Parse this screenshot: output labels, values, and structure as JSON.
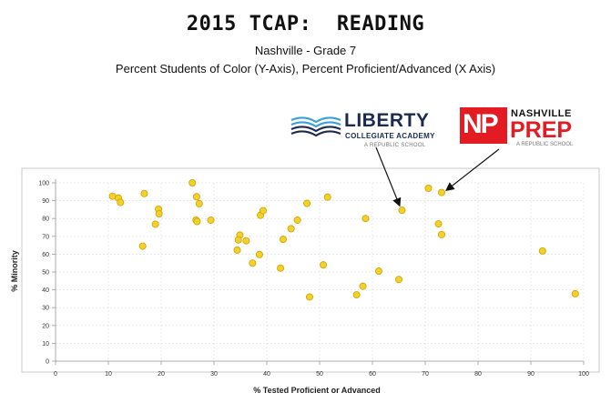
{
  "header": {
    "title": "2015 TCAP:  READING",
    "subtitle1": "Nashville - Grade 7",
    "subtitle2": "Percent Students of Color (Y-Axis), Percent Proficient/Advanced (X Axis)"
  },
  "logos": {
    "liberty": {
      "name": "LIBERTY",
      "subtitle": "COLLEGIATE ACADEMY",
      "tagline": "A REPUBLIC SCHOOL"
    },
    "nashville_prep": {
      "initials": "NP",
      "name_top": "NASHVILLE",
      "name_bottom": "PREP",
      "tagline": "A REPUBLIC SCHOOL"
    }
  },
  "colors": {
    "point_fill": "#f5d02b",
    "point_stroke": "#c9a200",
    "grid": "#dcdcdc",
    "axis": "#999999",
    "liberty_blue": "#1c2a52",
    "np_red": "#e31b23"
  },
  "chart_data": {
    "type": "scatter",
    "title": "2015 TCAP:  READING",
    "xlabel": "% Tested Proficient or Advanced",
    "ylabel": "% Minority",
    "xlim": [
      0,
      100
    ],
    "ylim": [
      0,
      100
    ],
    "xticks": [
      0,
      10,
      20,
      30,
      40,
      50,
      60,
      70,
      80,
      90,
      100
    ],
    "yticks": [
      0,
      10,
      20,
      30,
      40,
      50,
      60,
      70,
      80,
      90,
      100
    ],
    "grid": true,
    "points": [
      {
        "x": 10.8,
        "y": 92.5
      },
      {
        "x": 11.9,
        "y": 91.5
      },
      {
        "x": 12.3,
        "y": 89
      },
      {
        "x": 16.8,
        "y": 94
      },
      {
        "x": 16.5,
        "y": 64.5
      },
      {
        "x": 18.9,
        "y": 76.8
      },
      {
        "x": 19.5,
        "y": 85.2
      },
      {
        "x": 19.6,
        "y": 82.6
      },
      {
        "x": 25.9,
        "y": 100
      },
      {
        "x": 26.7,
        "y": 92.2
      },
      {
        "x": 27.2,
        "y": 88.3
      },
      {
        "x": 26.6,
        "y": 79.1
      },
      {
        "x": 26.8,
        "y": 78.3
      },
      {
        "x": 29.4,
        "y": 79.1
      },
      {
        "x": 34.9,
        "y": 70.7
      },
      {
        "x": 34.6,
        "y": 68
      },
      {
        "x": 36.1,
        "y": 67.5
      },
      {
        "x": 34.4,
        "y": 62.3
      },
      {
        "x": 37.3,
        "y": 55
      },
      {
        "x": 38.6,
        "y": 59.8
      },
      {
        "x": 38.8,
        "y": 81.8
      },
      {
        "x": 39.3,
        "y": 84.4
      },
      {
        "x": 42.6,
        "y": 52.2
      },
      {
        "x": 43.1,
        "y": 68.3
      },
      {
        "x": 44.6,
        "y": 74.3
      },
      {
        "x": 45.8,
        "y": 79.1
      },
      {
        "x": 47.6,
        "y": 88.5
      },
      {
        "x": 48.1,
        "y": 36
      },
      {
        "x": 50.7,
        "y": 54
      },
      {
        "x": 51.5,
        "y": 92
      },
      {
        "x": 57,
        "y": 37.2
      },
      {
        "x": 58.2,
        "y": 42
      },
      {
        "x": 58.7,
        "y": 80
      },
      {
        "x": 61.2,
        "y": 50.5
      },
      {
        "x": 65,
        "y": 45.8
      },
      {
        "x": 65.6,
        "y": 84.6
      },
      {
        "x": 70.6,
        "y": 97
      },
      {
        "x": 72.5,
        "y": 77
      },
      {
        "x": 73.1,
        "y": 94.6
      },
      {
        "x": 73.1,
        "y": 71
      },
      {
        "x": 92.2,
        "y": 61.8
      },
      {
        "x": 98.4,
        "y": 37.8
      }
    ],
    "annotations": [
      {
        "label": "LIBERTY COLLEGIATE ACADEMY",
        "x": 65.6,
        "y": 84.6
      },
      {
        "label": "NASHVILLE PREP",
        "x": 73.1,
        "y": 94.6
      }
    ]
  }
}
